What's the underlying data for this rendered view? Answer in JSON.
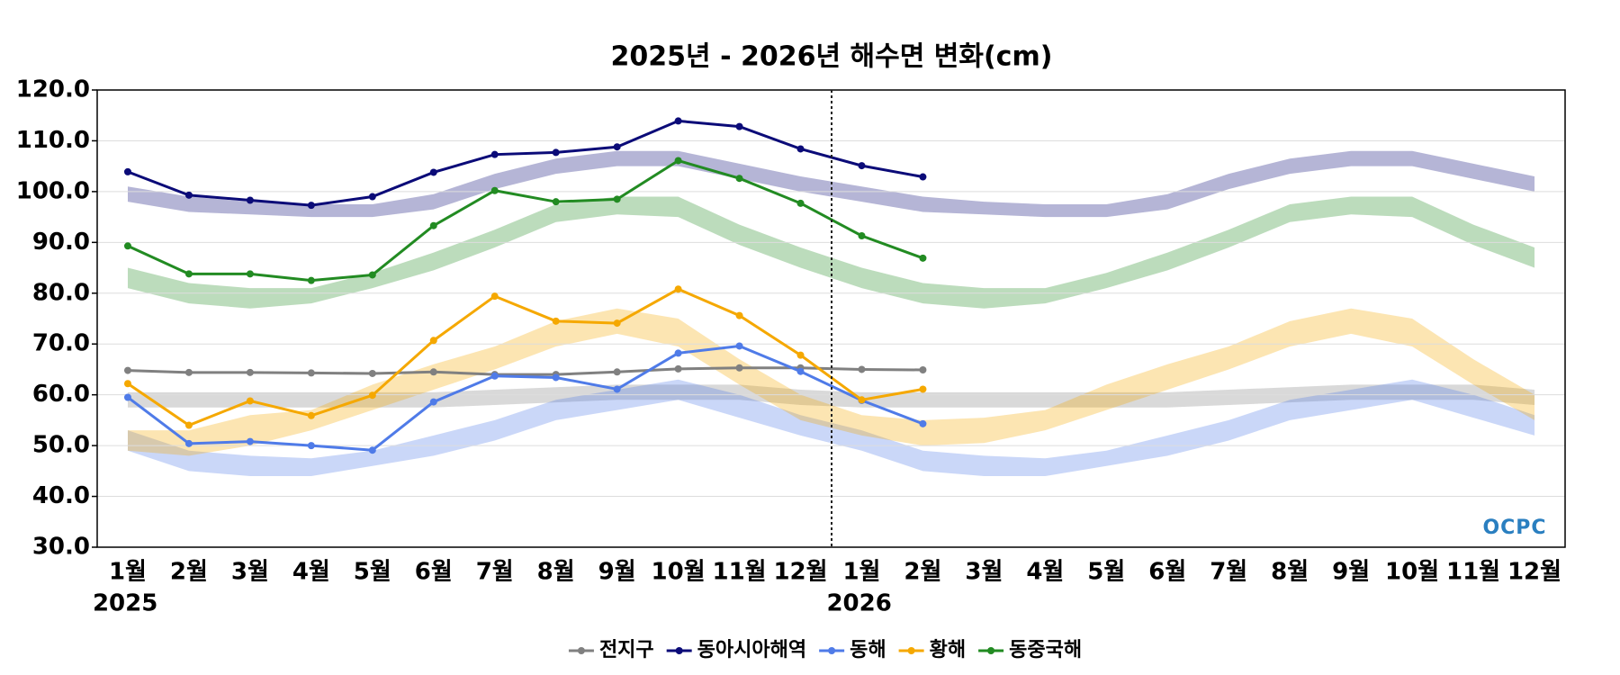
{
  "chart_data": {
    "type": "line",
    "title": "2025년 - 2026년 해수면 변화(cm)",
    "categories": [
      "1월",
      "2월",
      "3월",
      "4월",
      "5월",
      "6월",
      "7월",
      "8월",
      "9월",
      "10월",
      "11월",
      "12월",
      "1월",
      "2월",
      "3월",
      "4월",
      "5월",
      "6월",
      "7월",
      "8월",
      "9월",
      "10월",
      "11월",
      "12월"
    ],
    "year_labels": [
      {
        "index": 0,
        "label": "2025"
      },
      {
        "index": 12,
        "label": "2026"
      }
    ],
    "ylim": [
      30,
      120
    ],
    "yticks": [
      {
        "value": 30,
        "label": "30.0"
      },
      {
        "value": 40,
        "label": "40.0"
      },
      {
        "value": 50,
        "label": "50.0"
      },
      {
        "value": 60,
        "label": "60.0"
      },
      {
        "value": 70,
        "label": "70.0"
      },
      {
        "value": 80,
        "label": "80.0"
      },
      {
        "value": 90,
        "label": "90.0"
      },
      {
        "value": 100,
        "label": "100.0"
      },
      {
        "value": 110,
        "label": "110.0"
      },
      {
        "value": 120,
        "label": "120.0"
      }
    ],
    "grid": true,
    "legend": "bottom",
    "watermark": "OCPC",
    "series": [
      {
        "name": "전지구",
        "color": "#808080",
        "values": [
          64.8,
          64.4,
          64.4,
          64.3,
          64.2,
          64.5,
          64.0,
          64.0,
          64.5,
          65.1,
          65.3,
          65.3,
          65.0,
          64.9,
          null,
          null,
          null,
          null,
          null,
          null,
          null,
          null,
          null,
          null
        ],
        "band_lower": [
          57.5,
          57.5,
          57.5,
          57.5,
          57.5,
          57.5,
          58,
          58.5,
          59,
          59,
          59,
          58,
          57.5,
          57.5,
          57.5,
          57.5,
          57.5,
          57.5,
          58,
          58.5,
          59,
          59,
          59,
          58
        ],
        "band_upper": [
          60.5,
          60.5,
          60.5,
          60.5,
          60.5,
          60.5,
          61,
          61.5,
          62,
          62,
          62,
          61,
          60.5,
          60.5,
          60.5,
          60.5,
          60.5,
          60.5,
          61,
          61.5,
          62,
          62,
          62,
          61
        ]
      },
      {
        "name": "동아시아해역",
        "color": "#0b0b78",
        "values": [
          103.9,
          99.3,
          98.3,
          97.3,
          99.0,
          103.8,
          107.3,
          107.7,
          108.8,
          113.9,
          112.8,
          108.4,
          105.1,
          102.9,
          null,
          null,
          null,
          null,
          null,
          null,
          null,
          null,
          null,
          null
        ],
        "band_lower": [
          98,
          96,
          95.5,
          95,
          95,
          96.5,
          100.5,
          103.5,
          105,
          105,
          102.5,
          100,
          98,
          96,
          95.5,
          95,
          95,
          96.5,
          100.5,
          103.5,
          105,
          105,
          102.5,
          100
        ],
        "band_upper": [
          101,
          99,
          98,
          97.5,
          97.5,
          99.5,
          103.5,
          106.5,
          108,
          108,
          105.5,
          103,
          101,
          99,
          98,
          97.5,
          97.5,
          99.5,
          103.5,
          106.5,
          108,
          108,
          105.5,
          103
        ]
      },
      {
        "name": "동해",
        "color": "#4f7be8",
        "values": [
          59.5,
          50.4,
          50.8,
          50.0,
          49.1,
          58.6,
          63.7,
          63.4,
          61.1,
          68.2,
          69.6,
          64.6,
          58.9,
          54.3,
          null,
          null,
          null,
          null,
          null,
          null,
          null,
          null,
          null,
          null
        ],
        "band_lower": [
          49,
          45,
          44,
          44,
          46,
          48,
          51,
          55,
          57,
          59,
          55.5,
          52,
          49,
          45,
          44,
          44,
          46,
          48,
          51,
          55,
          57,
          59,
          55.5,
          52
        ],
        "band_upper": [
          53,
          49,
          48,
          47.5,
          49,
          52,
          55,
          59,
          61,
          63,
          60,
          56,
          53,
          49,
          48,
          47.5,
          49,
          52,
          55,
          59,
          61,
          63,
          60,
          56
        ]
      },
      {
        "name": "황해",
        "color": "#f5a800",
        "values": [
          62.2,
          54.0,
          58.8,
          55.9,
          59.9,
          70.7,
          79.4,
          74.5,
          74.1,
          80.8,
          75.6,
          67.8,
          59.0,
          61.1,
          null,
          null,
          null,
          null,
          null,
          null,
          null,
          null,
          null,
          null
        ],
        "band_lower": [
          49,
          48,
          50,
          53,
          57,
          61,
          65,
          69.5,
          72,
          69.5,
          62,
          55,
          52,
          50,
          50.5,
          53,
          57,
          61,
          65,
          69.5,
          72,
          69.5,
          62,
          55
        ],
        "band_upper": [
          53,
          53,
          56,
          57,
          62,
          66,
          69.5,
          74.5,
          77,
          75,
          67,
          60,
          56,
          55,
          55.5,
          57,
          62,
          66,
          69.5,
          74.5,
          77,
          75,
          67,
          60
        ]
      },
      {
        "name": "동중국해",
        "color": "#228b22",
        "values": [
          89.3,
          83.8,
          83.8,
          82.5,
          83.6,
          93.3,
          100.2,
          98.0,
          98.5,
          106.1,
          102.6,
          97.7,
          91.3,
          86.9,
          null,
          null,
          null,
          null,
          null,
          null,
          null,
          null,
          null,
          null
        ],
        "band_lower": [
          81,
          78,
          77,
          78,
          81,
          84.5,
          89,
          94,
          95.5,
          95,
          89.5,
          85,
          81,
          78,
          77,
          78,
          81,
          84.5,
          89,
          94,
          95.5,
          95,
          89.5,
          85
        ],
        "band_upper": [
          85,
          82,
          81,
          81,
          84,
          88,
          92.5,
          97.5,
          99,
          99,
          93.5,
          89,
          85,
          82,
          81,
          81,
          84,
          88,
          92.5,
          97.5,
          99,
          99,
          93.5,
          89
        ]
      }
    ]
  }
}
